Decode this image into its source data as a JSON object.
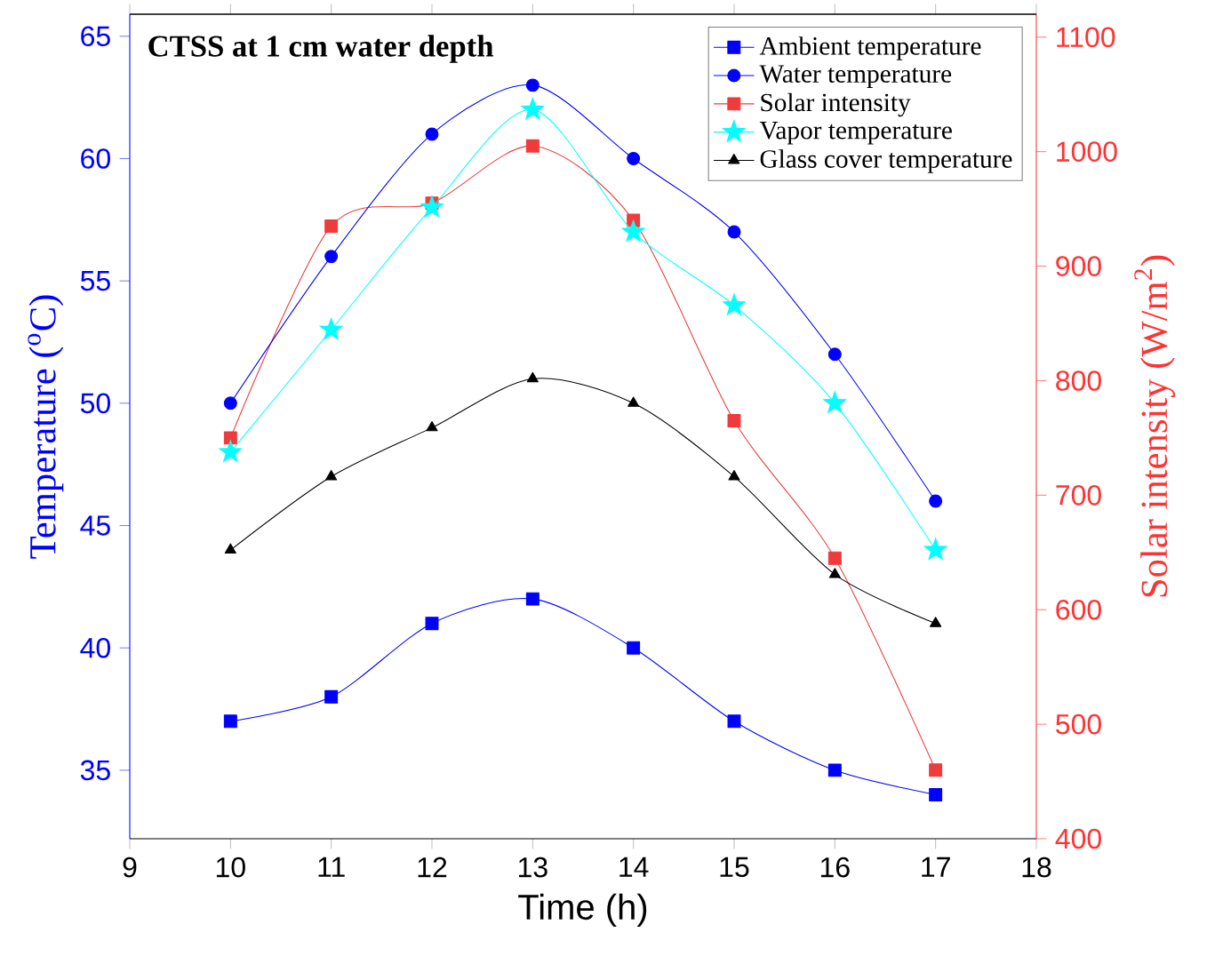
{
  "chart_data": {
    "type": "line",
    "title": "CTSS at 1 cm water depth",
    "xlabel": "Time (h)",
    "ylabel": "Temperature ($^{o}$C)",
    "y2label": "Solar intensity (W/m$^{2}$)",
    "x": [
      10,
      11,
      12,
      13,
      14,
      15,
      16,
      17
    ],
    "series": [
      {
        "name": "Ambient temperature",
        "color": "#0000ff",
        "marker": "square",
        "values": [
          37,
          38,
          41,
          42,
          40,
          37,
          35,
          34
        ]
      },
      {
        "name": "Water temperature",
        "color": "#0000ff",
        "marker": "circle",
        "values": [
          50,
          56,
          61,
          63,
          60,
          57,
          52,
          46
        ]
      },
      {
        "name": "Solar intensity",
        "color": "#ef3b3b",
        "marker": "square",
        "axis": "y2",
        "values": [
          750,
          935,
          955,
          1005,
          940,
          765,
          645,
          460
        ]
      },
      {
        "name": "Vapor temperature",
        "color": "#00ffff",
        "marker": "star",
        "values": [
          48,
          53,
          58,
          62,
          57,
          54,
          50,
          44
        ]
      },
      {
        "name": "Glass cover temperature",
        "color": "#000000",
        "marker": "triangle",
        "values": [
          44,
          47,
          49,
          51,
          50,
          47,
          43,
          41
        ]
      }
    ],
    "xlim": [
      9,
      18
    ],
    "xticks": [
      9,
      10,
      11,
      12,
      13,
      14,
      15,
      16,
      17,
      18
    ],
    "ylim": [
      32.2,
      65.9
    ],
    "yticks": [
      35,
      40,
      45,
      50,
      55,
      60,
      65
    ],
    "y2lim": [
      400,
      1120
    ],
    "y2ticks": [
      400,
      500,
      600,
      700,
      800,
      900,
      1000,
      1100
    ],
    "legend": "top right",
    "grid": false,
    "line_style": "solid"
  }
}
